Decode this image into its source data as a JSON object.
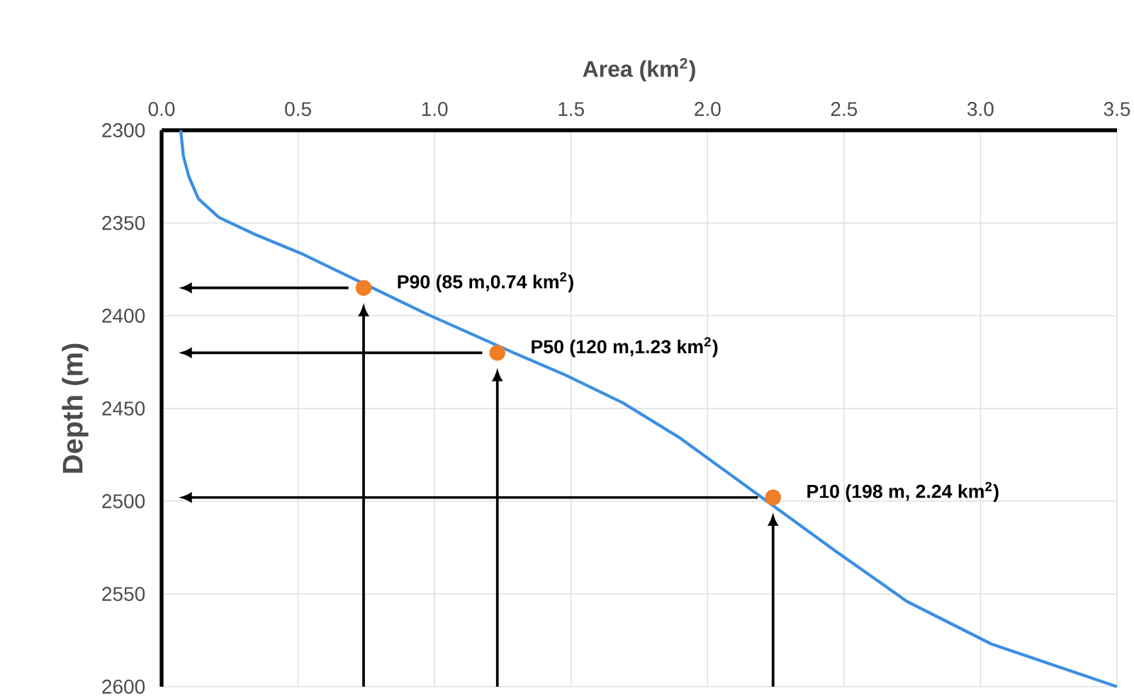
{
  "chart_data": {
    "type": "line",
    "xlabel": "Area (km$^{2}$)",
    "ylabel": "Depth (m)",
    "xlim": [
      0,
      3.5
    ],
    "ylim": [
      2600,
      2300
    ],
    "xticks": [
      {
        "value": 0,
        "label": "0.0"
      },
      0.5,
      {
        "value": 1,
        "label": "1.0"
      },
      1.5,
      {
        "value": 2,
        "label": "2.0"
      },
      2.5,
      {
        "value": 3,
        "label": "3.0"
      },
      3.5
    ],
    "yticks": [
      2300,
      2350,
      2400,
      2450,
      2500,
      2550,
      2600
    ],
    "grid": true,
    "series": [
      {
        "color": "#3b8fe3",
        "marker": "none",
        "x": [
          0.07,
          0.08,
          0.1,
          0.135,
          0.21,
          0.34,
          0.52,
          0.97,
          1.29,
          1.48,
          1.69,
          1.9,
          2.47,
          2.73,
          3.04,
          3.5
        ],
        "values": [
          2300,
          2314,
          2325,
          2337,
          2347,
          2356,
          2367,
          2399,
          2420,
          2432,
          2447,
          2466,
          2527,
          2554,
          2577,
          2600
        ]
      },
      {
        "type": "scatter",
        "color": "#f07e26",
        "marker": "circle",
        "x": [
          0.74,
          1.23,
          2.24
        ],
        "values": [
          2385,
          2420,
          2498
        ]
      }
    ],
    "annotations": [
      {
        "text": "P90 (85 m,0.74 km$^{2}$)",
        "x": 0.74,
        "y": 2385
      },
      {
        "text": "P50 (120 m,1.23 km$^{2}$)",
        "x": 1.23,
        "y": 2420
      },
      {
        "text": "P10 (198 m, 2.24 km$^{2}$)",
        "x": 2.24,
        "y": 2498
      }
    ]
  }
}
